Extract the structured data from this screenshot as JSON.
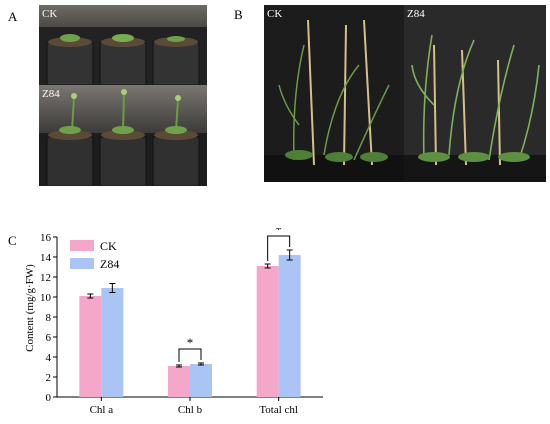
{
  "panels": {
    "a_letter": "A",
    "b_letter": "B",
    "c_letter": "C"
  },
  "photos": {
    "a_top_label": "CK",
    "a_bottom_label": "Z84",
    "b_left_label": "CK",
    "b_right_label": "Z84"
  },
  "chart_data": {
    "type": "bar",
    "categories": [
      "Chl a",
      "Chl b",
      "Total chl"
    ],
    "series": [
      {
        "name": "CK",
        "values": [
          10.1,
          3.1,
          13.1
        ],
        "errors": [
          0.2,
          0.1,
          0.2
        ],
        "color": "#f4a7c8"
      },
      {
        "name": "Z84",
        "values": [
          10.9,
          3.3,
          14.2
        ],
        "errors": [
          0.45,
          0.1,
          0.5
        ],
        "color": "#a9c4f5"
      }
    ],
    "ylabel": "Content (mg/g·FW)",
    "ylim": [
      0,
      16
    ],
    "yticks": [
      "0",
      "2",
      "4",
      "6",
      "8",
      "10",
      "12",
      "14",
      "16"
    ],
    "significance": [
      {
        "category": "Chl b",
        "mark": "*"
      },
      {
        "category": "Total chl",
        "mark": "*"
      }
    ],
    "legend_position": "top-left",
    "grid": false
  }
}
